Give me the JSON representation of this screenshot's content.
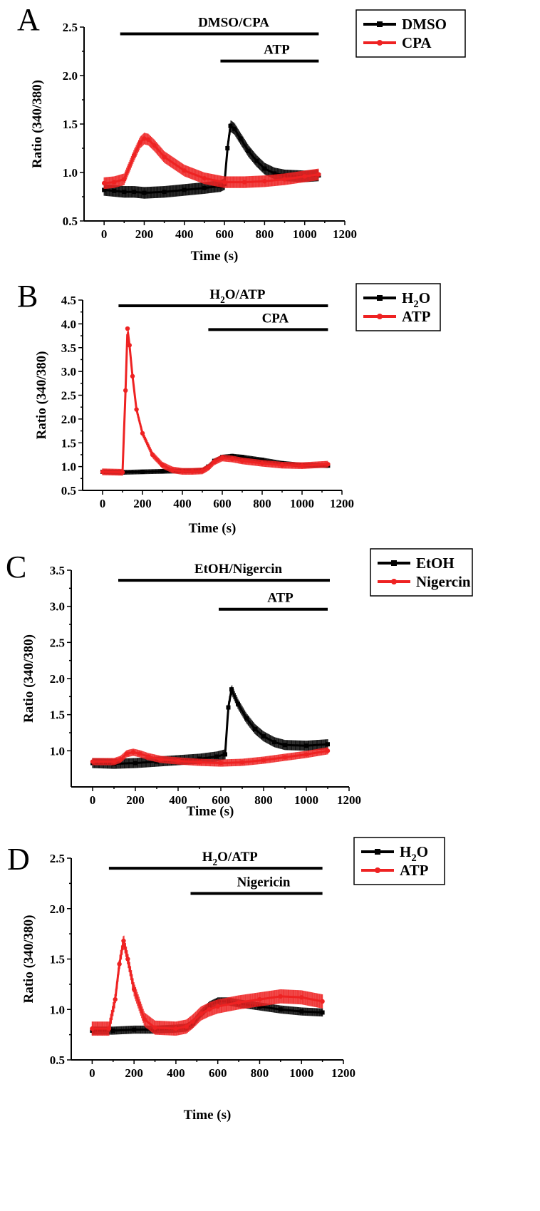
{
  "chart_data": [
    {
      "panel": "A",
      "type": "line",
      "title": "",
      "xlabel": "Time (s)",
      "ylabel": "Ratio (340/380)",
      "xlim": [
        -100,
        1200
      ],
      "ylim": [
        0.5,
        2.5
      ],
      "xticks": [
        0,
        200,
        400,
        600,
        800,
        1000,
        1200
      ],
      "yticks": [
        0.5,
        1.0,
        1.5,
        2.0,
        2.5
      ],
      "treatments": [
        {
          "label": "DMSO/CPA",
          "start": 80,
          "end": 1070,
          "level": 2.43
        },
        {
          "label": "ATP",
          "start": 580,
          "end": 1070,
          "level": 2.15
        }
      ],
      "legend": {
        "position": "top-right"
      },
      "series": [
        {
          "name": "DMSO",
          "color": "#000000",
          "marker": "square",
          "x": [
            0,
            50,
            100,
            150,
            200,
            300,
            400,
            500,
            580,
            600,
            615,
            630,
            650,
            680,
            720,
            760,
            800,
            850,
            900,
            1000,
            1070
          ],
          "y": [
            0.82,
            0.81,
            0.8,
            0.8,
            0.79,
            0.8,
            0.82,
            0.84,
            0.86,
            0.88,
            1.25,
            1.48,
            1.45,
            1.35,
            1.22,
            1.12,
            1.04,
            0.99,
            0.97,
            0.96,
            0.97
          ],
          "err": 0.06
        },
        {
          "name": "CPA",
          "color": "#ee2222",
          "marker": "circle",
          "x": [
            0,
            50,
            100,
            150,
            180,
            200,
            220,
            250,
            300,
            400,
            500,
            600,
            700,
            800,
            900,
            1000,
            1070
          ],
          "y": [
            0.89,
            0.9,
            0.93,
            1.18,
            1.31,
            1.35,
            1.34,
            1.28,
            1.16,
            1.02,
            0.94,
            0.9,
            0.9,
            0.91,
            0.93,
            0.96,
            0.98
          ],
          "err": 0.06
        }
      ]
    },
    {
      "panel": "B",
      "type": "line",
      "title": "",
      "xlabel": "Time (s)",
      "ylabel": "Ratio (340/380)",
      "xlim": [
        -100,
        1200
      ],
      "ylim": [
        0.5,
        4.5
      ],
      "xticks": [
        0,
        200,
        400,
        600,
        800,
        1000,
        1200
      ],
      "yticks": [
        0.5,
        1.0,
        1.5,
        2.0,
        2.5,
        3.0,
        3.5,
        4.0,
        4.5
      ],
      "treatments": [
        {
          "label": "H2O/ATP",
          "label_main": "H",
          "label_sub": "2",
          "label_tail": "O/ATP",
          "start": 80,
          "end": 1130,
          "level": 4.38
        },
        {
          "label": "CPA",
          "start": 530,
          "end": 1130,
          "level": 3.88
        }
      ],
      "legend": {
        "position": "top-right"
      },
      "series": [
        {
          "name": "H2O",
          "name_main": "H",
          "name_sub": "2",
          "name_tail": "O",
          "color": "#000000",
          "marker": "square",
          "x": [
            0,
            100,
            200,
            300,
            400,
            500,
            530,
            560,
            600,
            650,
            700,
            800,
            900,
            1000,
            1130
          ],
          "y": [
            0.89,
            0.88,
            0.89,
            0.9,
            0.91,
            0.92,
            1.0,
            1.12,
            1.2,
            1.22,
            1.2,
            1.14,
            1.07,
            1.03,
            1.02
          ],
          "err": 0.05
        },
        {
          "name": "ATP",
          "color": "#ee2222",
          "marker": "circle",
          "x": [
            0,
            100,
            115,
            125,
            135,
            150,
            170,
            200,
            250,
            300,
            350,
            400,
            450,
            500,
            530,
            560,
            600,
            650,
            700,
            800,
            900,
            1000,
            1130
          ],
          "y": [
            0.89,
            0.88,
            2.6,
            3.9,
            3.55,
            2.9,
            2.2,
            1.7,
            1.25,
            1.03,
            0.93,
            0.9,
            0.9,
            0.91,
            0.98,
            1.1,
            1.18,
            1.16,
            1.12,
            1.07,
            1.03,
            1.02,
            1.05
          ],
          "err": 0.07
        }
      ]
    },
    {
      "panel": "C",
      "type": "line",
      "title": "",
      "xlabel": "Time (s)",
      "ylabel": "Ratio (340/380)",
      "xlim": [
        -100,
        1200
      ],
      "ylim": [
        0.5,
        3.5
      ],
      "xticks": [
        0,
        200,
        400,
        600,
        800,
        1000,
        1200
      ],
      "yticks": [
        1.0,
        1.5,
        2.0,
        2.5,
        3.0,
        3.5
      ],
      "treatments": [
        {
          "label": "EtOH/Nigercin",
          "start": 120,
          "end": 1110,
          "level": 3.36
        },
        {
          "label": "ATP",
          "start": 590,
          "end": 1100,
          "level": 2.96
        }
      ],
      "legend": {
        "position": "top-right"
      },
      "series": [
        {
          "name": "EtOH",
          "color": "#000000",
          "marker": "square",
          "x": [
            0,
            100,
            200,
            300,
            400,
            500,
            580,
            620,
            635,
            650,
            680,
            720,
            760,
            800,
            850,
            900,
            1000,
            1100
          ],
          "y": [
            0.83,
            0.82,
            0.83,
            0.85,
            0.87,
            0.89,
            0.92,
            0.95,
            1.6,
            1.85,
            1.65,
            1.45,
            1.3,
            1.2,
            1.12,
            1.08,
            1.07,
            1.09
          ],
          "err": 0.07
        },
        {
          "name": "Nigercin",
          "color": "#ee2222",
          "marker": "circle",
          "x": [
            0,
            100,
            130,
            160,
            190,
            220,
            260,
            320,
            400,
            500,
            600,
            700,
            800,
            900,
            1000,
            1100
          ],
          "y": [
            0.85,
            0.85,
            0.88,
            0.96,
            0.98,
            0.96,
            0.92,
            0.88,
            0.86,
            0.84,
            0.83,
            0.84,
            0.87,
            0.91,
            0.95,
            1.0
          ],
          "err": 0.05
        }
      ]
    },
    {
      "panel": "D",
      "type": "line",
      "title": "",
      "xlabel": "Time (s)",
      "ylabel": "Ratio (340/380)",
      "xlim": [
        -100,
        1200
      ],
      "ylim": [
        0.5,
        2.5
      ],
      "xticks": [
        0,
        200,
        400,
        600,
        800,
        1000,
        1200
      ],
      "yticks": [
        0.5,
        1.0,
        1.5,
        2.0,
        2.5
      ],
      "treatments": [
        {
          "label": "H2O/ATP",
          "label_main": "H",
          "label_sub": "2",
          "label_tail": "O/ATP",
          "start": 80,
          "end": 1100,
          "level": 2.4
        },
        {
          "label": "Nigericin",
          "start": 470,
          "end": 1100,
          "level": 2.15
        }
      ],
      "legend": {
        "position": "top-right"
      },
      "series": [
        {
          "name": "H2O",
          "name_main": "H",
          "name_sub": "2",
          "name_tail": "O",
          "color": "#000000",
          "marker": "square",
          "x": [
            0,
            100,
            200,
            300,
            400,
            450,
            480,
            520,
            560,
            600,
            650,
            700,
            800,
            900,
            1000,
            1100
          ],
          "y": [
            0.79,
            0.79,
            0.8,
            0.8,
            0.81,
            0.82,
            0.86,
            0.96,
            1.04,
            1.08,
            1.08,
            1.06,
            1.03,
            1.0,
            0.98,
            0.97
          ],
          "err": 0.04
        },
        {
          "name": "ATP",
          "color": "#ee2222",
          "marker": "circle",
          "x": [
            0,
            80,
            110,
            130,
            150,
            170,
            200,
            250,
            300,
            400,
            450,
            480,
            520,
            560,
            600,
            700,
            800,
            900,
            1000,
            1100
          ],
          "y": [
            0.81,
            0.81,
            1.1,
            1.45,
            1.68,
            1.5,
            1.2,
            0.9,
            0.82,
            0.81,
            0.83,
            0.88,
            0.96,
            1.0,
            1.03,
            1.07,
            1.1,
            1.13,
            1.12,
            1.08
          ],
          "err": 0.07
        }
      ]
    }
  ]
}
